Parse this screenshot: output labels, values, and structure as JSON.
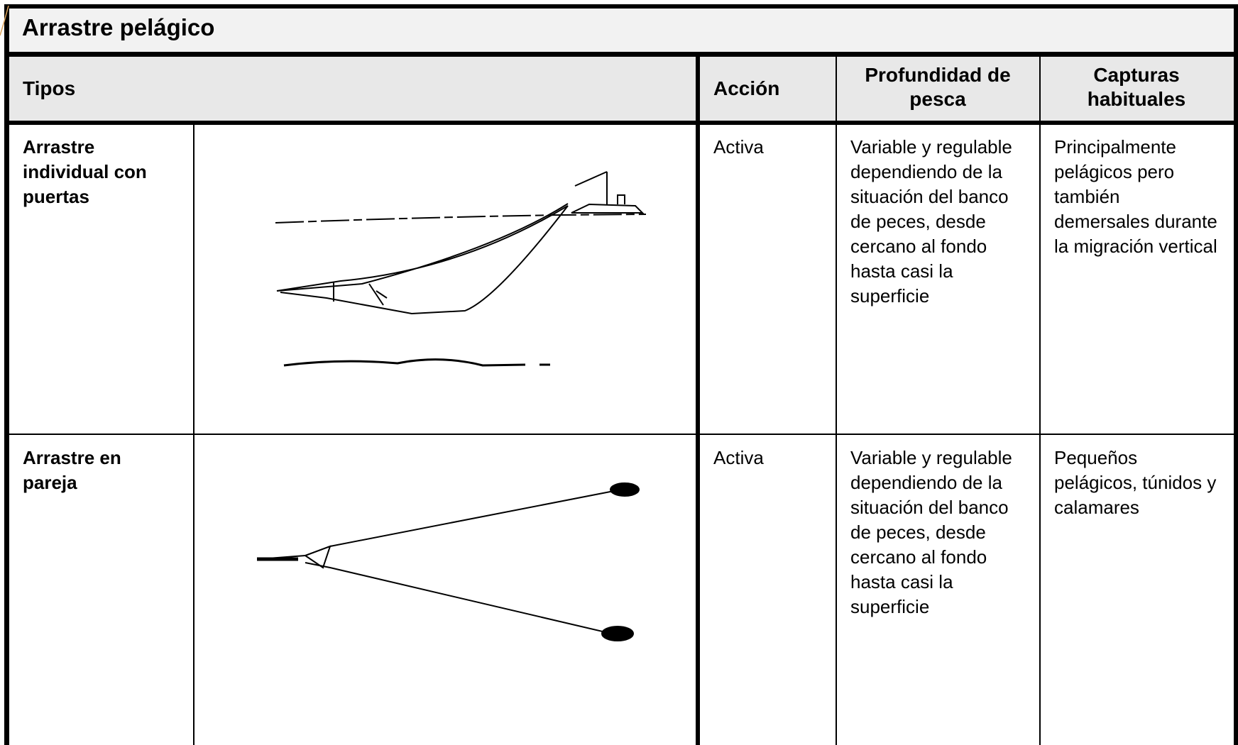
{
  "header": {
    "title": "Arrastre pelágico"
  },
  "table": {
    "columns": [
      "Tipos",
      "Acción",
      "Profundidad de pesca",
      "Capturas habituales"
    ],
    "rows": [
      [
        "Arrastre individual con puertas",
        "Activa",
        "Variable y regulable dependiendo de la situación del banco de peces, desde cercano al fondo hasta casi la superficie",
        "Principalmente pelágicos pero también demersales durante la migración vertical"
      ],
      [
        "Arrastre en pareja",
        "Activa",
        "Variable y regulable dependiendo de la situación del banco de peces, desde cercano al fondo hasta casi la superficie",
        "Pequeños pelágicos, túnidos y calamares"
      ]
    ]
  }
}
